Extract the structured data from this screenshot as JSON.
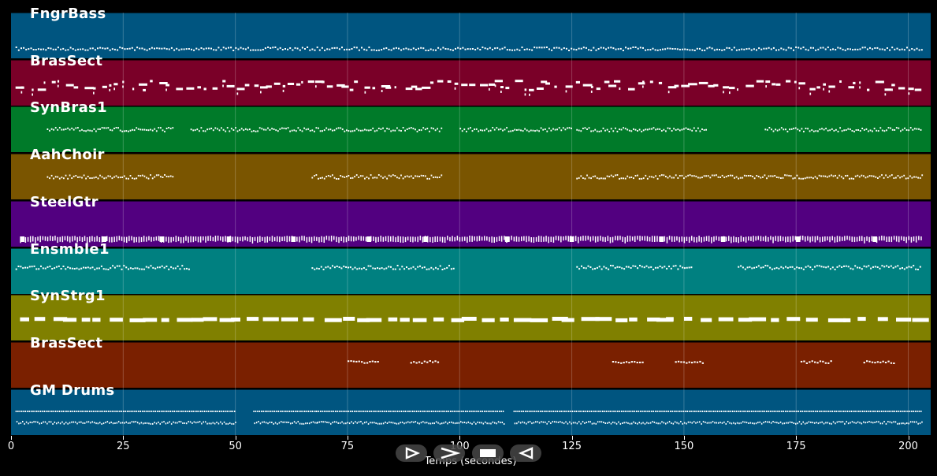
{
  "colors": {
    "note": "#ffffff",
    "background": "#000000",
    "control_bg": "#464646"
  },
  "tracks": [
    {
      "name": "FngrBass",
      "color": "#005580",
      "pattern": "bass"
    },
    {
      "name": "BrasSect",
      "color": "#7a0028",
      "pattern": "brass_hits"
    },
    {
      "name": "SynBras1",
      "color": "#007a29",
      "pattern": "synbrass"
    },
    {
      "name": "AahChoir",
      "color": "#7a5500",
      "pattern": "choir"
    },
    {
      "name": "SteelGtr",
      "color": "#520080",
      "pattern": "guitar"
    },
    {
      "name": "Ensmble1",
      "color": "#008080",
      "pattern": "ensemble"
    },
    {
      "name": "SynStrg1",
      "color": "#808000",
      "pattern": "strings"
    },
    {
      "name": "BrasSect",
      "color": "#7a2000",
      "pattern": "brass_sparse"
    },
    {
      "name": "GM Drums",
      "color": "#005580",
      "pattern": "drums"
    }
  ],
  "x_axis": {
    "title": "Temps (secondes)",
    "ticks": [
      "0",
      "25",
      "50",
      "75",
      "100",
      "125",
      "150",
      "175",
      "200"
    ],
    "max_seconds": 205
  },
  "controls": [
    {
      "name": "play-button",
      "icon": "play-outline-icon"
    },
    {
      "name": "forward-button",
      "icon": "chevron-right-icon"
    },
    {
      "name": "stop-button",
      "icon": "stop-icon"
    },
    {
      "name": "back-button",
      "icon": "triangle-left-icon"
    }
  ]
}
